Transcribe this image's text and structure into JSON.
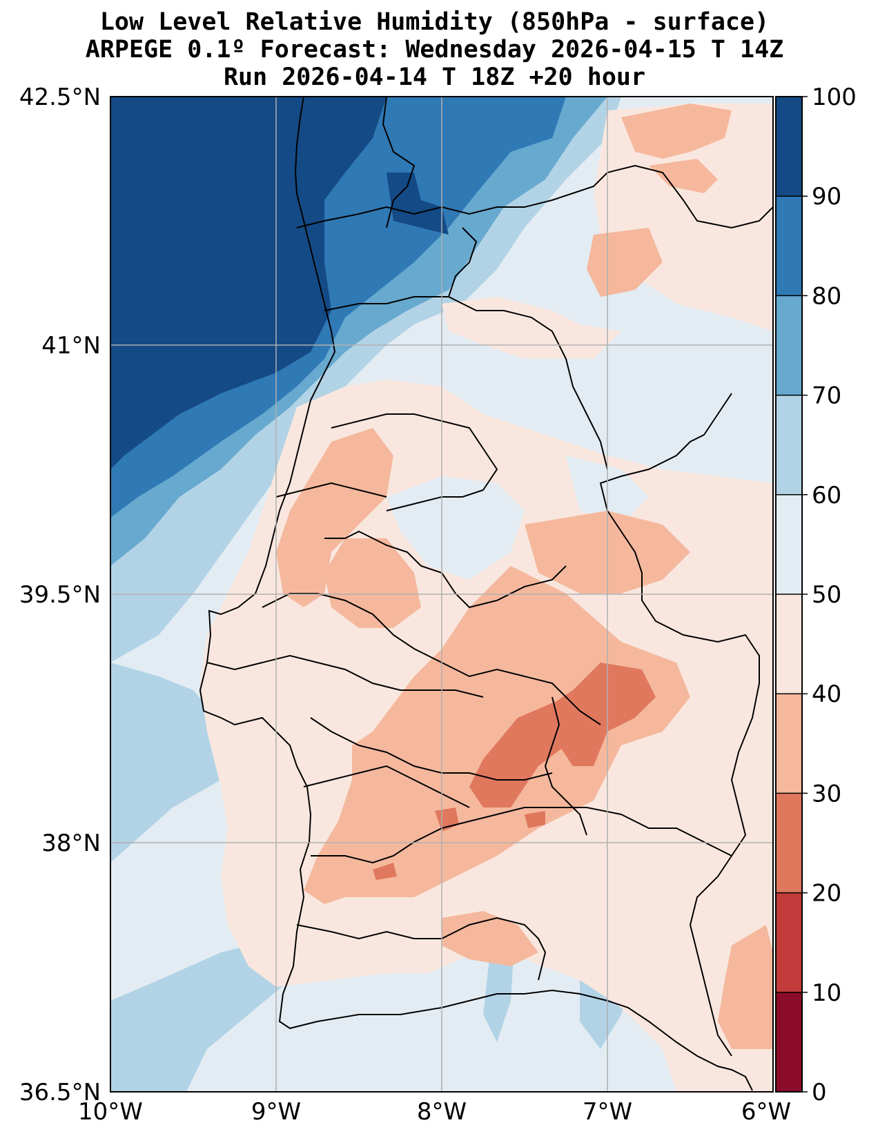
{
  "title": {
    "line1": "Low Level Relative Humidity (850hPa - surface)",
    "line2": "ARPEGE 0.1º Forecast: Wednesday 2026-04-15 T 14Z",
    "line3": "Run 2026-04-14 T 18Z +20 hour"
  },
  "map": {
    "lat_ticks": [
      "42.5°N",
      "41°N",
      "39.5°N",
      "38°N",
      "36.5°N"
    ],
    "lon_ticks": [
      "10°W",
      "9°W",
      "8°W",
      "7°W",
      "6°W"
    ],
    "lat_range": [
      36.5,
      42.5
    ],
    "lon_range": [
      -10,
      -6
    ],
    "grid": true
  },
  "colorbar": {
    "ticks": [
      "100",
      "90",
      "80",
      "70",
      "60",
      "50",
      "40",
      "30",
      "20",
      "10",
      "0"
    ],
    "colors": [
      "#144a86",
      "#2f79b5",
      "#67a9cf",
      "#b2d3e6",
      "#e3ecf3",
      "#f9e7df",
      "#f5b89d",
      "#e0785e",
      "#c33c3c",
      "#8b0c28"
    ]
  }
}
